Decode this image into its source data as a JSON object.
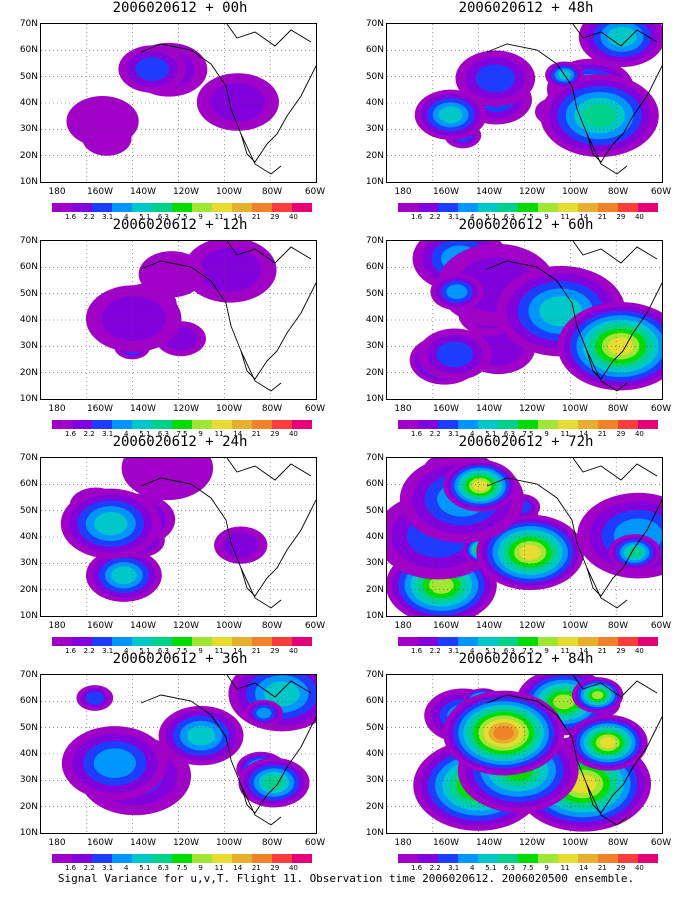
{
  "lat_labels": [
    "70N",
    "60N",
    "50N",
    "40N",
    "30N",
    "20N",
    "10N"
  ],
  "lon_labels": [
    "180",
    "160W",
    "140W",
    "120W",
    "100W",
    "80W",
    "60W"
  ],
  "colorbar": {
    "ticks": [
      "1.6",
      "2.2",
      "3.1",
      "4",
      "5.1",
      "6.3",
      "7.5",
      "9",
      "11",
      "14",
      "21",
      "29",
      "40"
    ],
    "colors": [
      "#a000c8",
      "#8200dc",
      "#1e3cff",
      "#0096ff",
      "#00c8c8",
      "#00d28c",
      "#00dc00",
      "#a0e632",
      "#e6dc32",
      "#e6af2d",
      "#f08228",
      "#fa3c3c",
      "#e60078"
    ]
  },
  "panels": [
    {
      "title": "2006020612 + 00h",
      "level": 0.15
    },
    {
      "title": "2006020612 + 48h",
      "level": 0.6
    },
    {
      "title": "2006020612 + 12h",
      "level": 0.3
    },
    {
      "title": "2006020612 + 60h",
      "level": 0.7
    },
    {
      "title": "2006020612 + 24h",
      "level": 0.4
    },
    {
      "title": "2006020612 + 72h",
      "level": 0.8
    },
    {
      "title": "2006020612 + 36h",
      "level": 0.5
    },
    {
      "title": "2006020612 + 84h",
      "level": 0.9
    }
  ],
  "footer": "Signal Variance for u,v,T. Flight 11. Observation time 2006020612. 2006020500 ensemble."
}
